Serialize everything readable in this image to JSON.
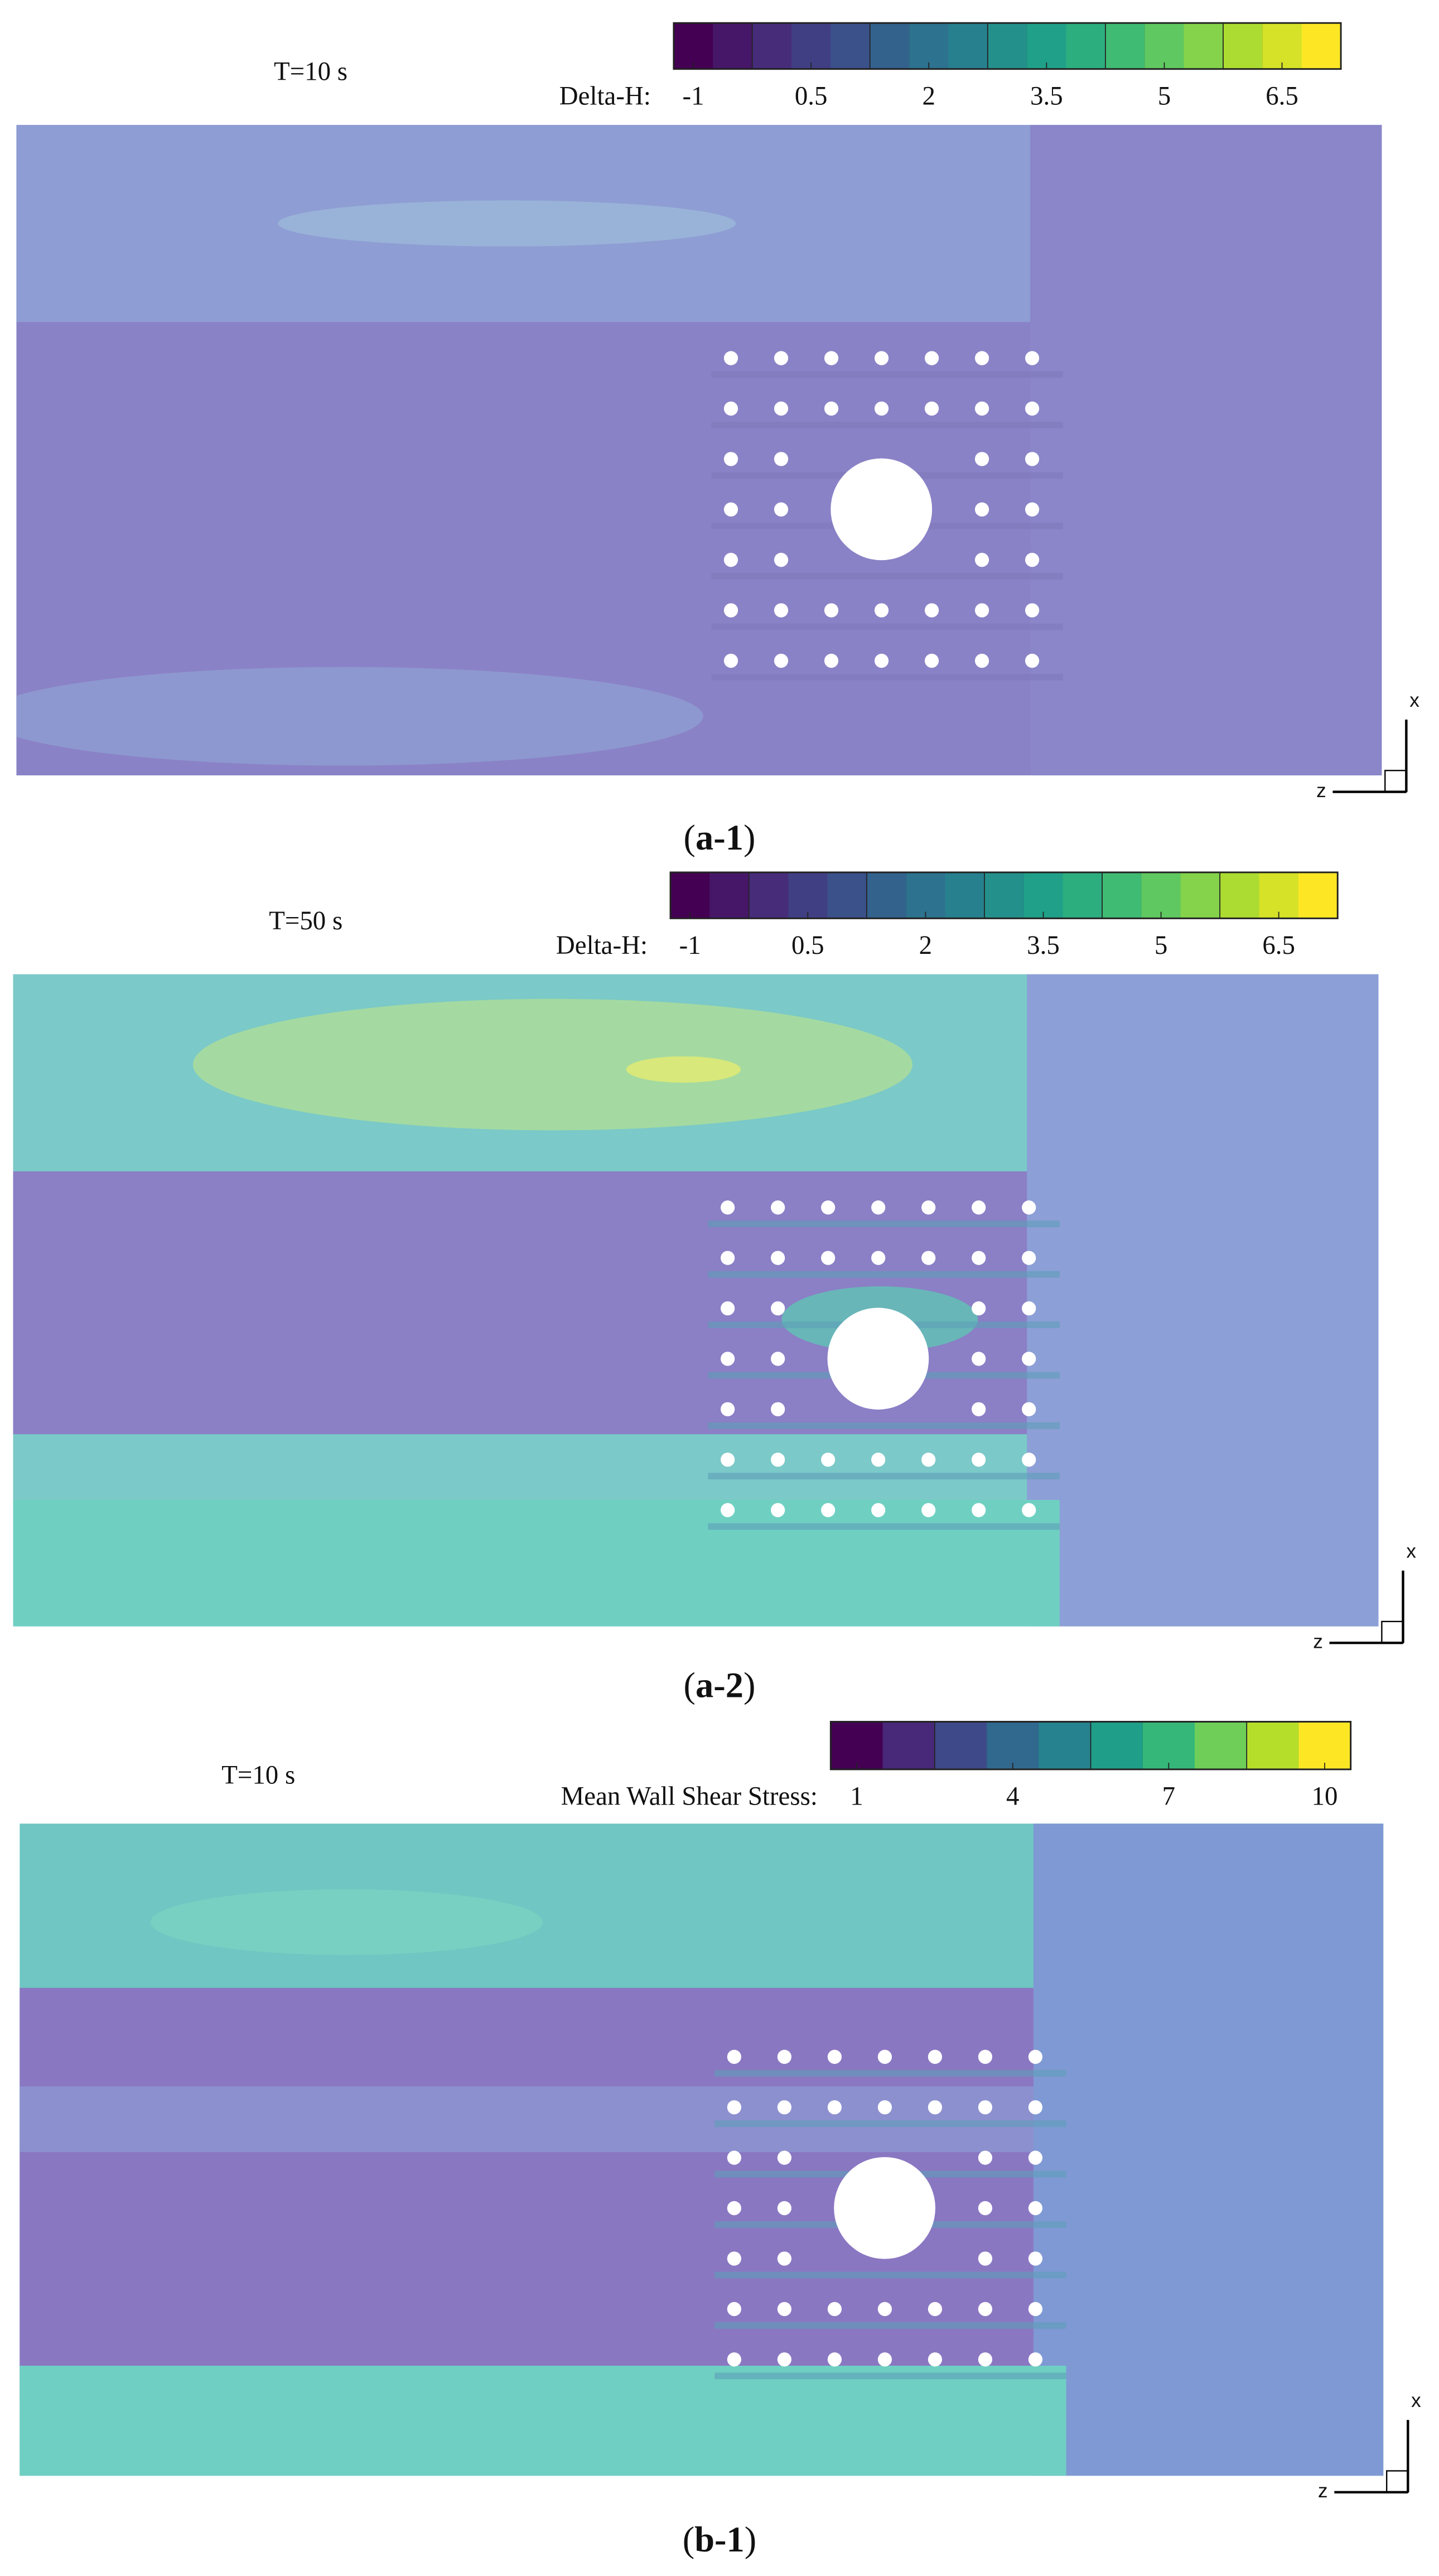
{
  "panels": [
    {
      "time": "T=10 s",
      "colorbar": {
        "label": "Delta-H:",
        "lim": [
          -1.25,
          7.25
        ],
        "ticks": [
          -1,
          0.5,
          2,
          3.5,
          5,
          6.5
        ]
      },
      "axes": {
        "vertical": "x",
        "horizontal": "z"
      },
      "caption": [
        "(",
        "a-1",
        ")"
      ]
    },
    {
      "time": "T=50 s",
      "colorbar": {
        "label": "Delta-H:",
        "lim": [
          -1.25,
          7.25
        ],
        "ticks": [
          -1,
          0.5,
          2,
          3.5,
          5,
          6.5
        ]
      },
      "axes": {
        "vertical": "x",
        "horizontal": "z"
      },
      "caption": [
        "(",
        "a-2",
        ")"
      ]
    },
    {
      "time": "T=10 s",
      "colorbar": {
        "label": "Mean Wall Shear Stress:",
        "lim": [
          0.5,
          10.5
        ],
        "ticks": [
          1,
          4,
          7,
          10
        ]
      },
      "axes": {
        "vertical": "x",
        "horizontal": "z"
      },
      "caption": [
        "(",
        "b-1",
        ")"
      ]
    }
  ]
}
